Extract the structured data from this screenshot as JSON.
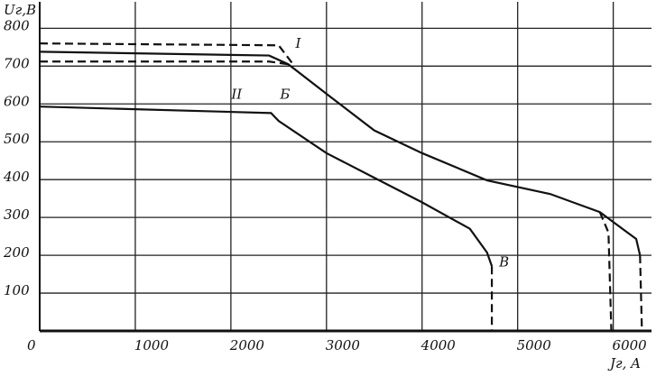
{
  "chart_data": {
    "type": "line",
    "y_label": "Uг,В",
    "x_label": "Jг, A",
    "origin_label": "0",
    "xlim": [
      0,
      6400
    ],
    "ylim": [
      0,
      870
    ],
    "xticks": [
      1000,
      2000,
      3000,
      4000,
      5000,
      6000
    ],
    "yticks": [
      100,
      200,
      300,
      400,
      500,
      600,
      700,
      800
    ],
    "grid": true,
    "series": [
      {
        "name": "I",
        "color": "#111",
        "dashed": false,
        "x": [
          0,
          2400,
          2600,
          3050,
          3500,
          4000,
          4680,
          5340,
          5860,
          6240,
          6280
        ],
        "values": [
          738,
          728,
          705,
          617,
          530,
          470,
          398,
          362,
          314,
          243,
          200
        ]
      },
      {
        "color": "#111",
        "dashed": true,
        "x": [
          0,
          2500,
          2650
        ],
        "values": [
          760,
          755,
          705
        ]
      },
      {
        "color": "#111",
        "dashed": true,
        "x": [
          0,
          2400,
          2600
        ],
        "values": [
          712,
          712,
          705
        ]
      },
      {
        "color": "#111",
        "dashed": true,
        "x": [
          5860,
          5950,
          5980
        ],
        "values": [
          314,
          260,
          0
        ]
      },
      {
        "color": "#111",
        "dashed": true,
        "x": [
          6280,
          6300
        ],
        "values": [
          200,
          0
        ]
      },
      {
        "name": "II",
        "color": "#111",
        "dashed": false,
        "x": [
          0,
          2420,
          2500,
          3000,
          3500,
          4000,
          4500,
          4680,
          4730
        ],
        "values": [
          593,
          576,
          555,
          470,
          405,
          340,
          270,
          207,
          171
        ]
      },
      {
        "color": "#111",
        "dashed": true,
        "x": [
          4730,
          4730
        ],
        "values": [
          171,
          0
        ]
      }
    ],
    "annotations": [
      "Б",
      "В"
    ]
  }
}
